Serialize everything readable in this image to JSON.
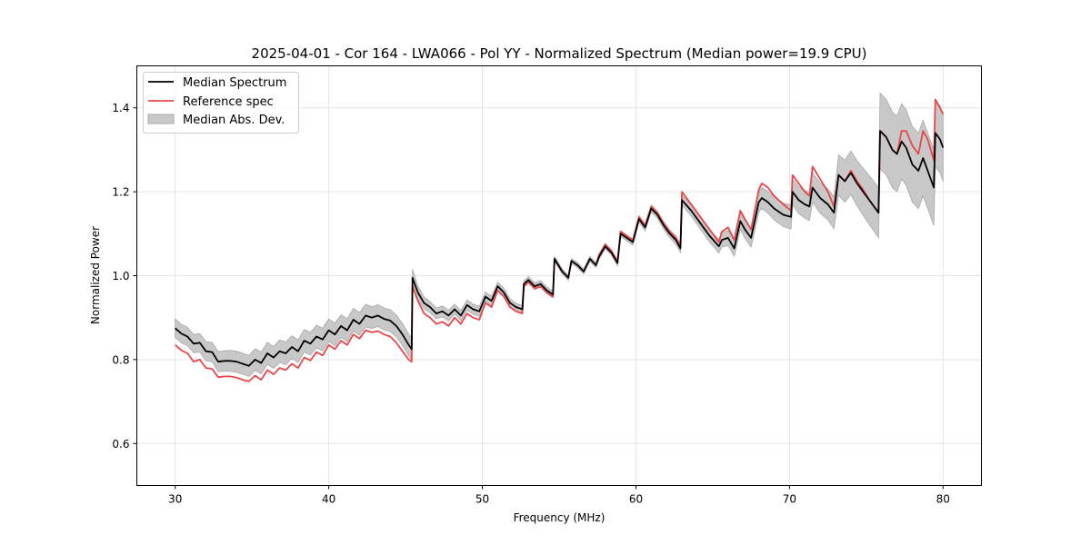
{
  "chart_data": {
    "type": "line",
    "title": "2025-04-01 - Cor 164 - LWA066 - Pol YY - Normalized Spectrum (Median power=19.9 CPU)",
    "xlabel": "Frequency (MHz)",
    "ylabel": "Normalized Power",
    "xlim": [
      27.5,
      82.5
    ],
    "ylim": [
      0.5,
      1.5
    ],
    "xticks": [
      30,
      40,
      50,
      60,
      70,
      80
    ],
    "xtick_labels": [
      "30",
      "40",
      "50",
      "60",
      "70",
      "80"
    ],
    "yticks": [
      0.6,
      0.8,
      1.0,
      1.2,
      1.4
    ],
    "ytick_labels": [
      "0.6",
      "0.8",
      "1.0",
      "1.2",
      "1.4"
    ],
    "grid": true,
    "legend": {
      "placement": "top-left",
      "entries": [
        {
          "label": "Median Spectrum",
          "kind": "line",
          "color": "#000000"
        },
        {
          "label": "Reference spec",
          "kind": "line",
          "color": "#e8474a"
        },
        {
          "label": "Median Abs. Dev.",
          "kind": "patch",
          "color": "#bfbfbf"
        }
      ]
    },
    "x": [
      30.0,
      30.4,
      30.8,
      31.2,
      31.6,
      32.0,
      32.4,
      32.8,
      33.2,
      33.6,
      34.0,
      34.4,
      34.8,
      35.2,
      35.6,
      36.0,
      36.4,
      36.8,
      37.2,
      37.6,
      38.0,
      38.4,
      38.8,
      39.2,
      39.6,
      40.0,
      40.4,
      40.8,
      41.2,
      41.6,
      42.0,
      42.4,
      42.8,
      43.2,
      43.6,
      44.0,
      44.4,
      44.8,
      45.2,
      45.4,
      45.45,
      45.8,
      46.2,
      46.6,
      47.0,
      47.4,
      47.8,
      48.2,
      48.6,
      49.0,
      49.4,
      49.8,
      50.2,
      50.6,
      51.0,
      51.4,
      51.8,
      52.2,
      52.6,
      52.7,
      53.0,
      53.4,
      53.8,
      54.2,
      54.6,
      54.7,
      55.2,
      55.6,
      55.8,
      56.2,
      56.6,
      57.0,
      57.4,
      57.6,
      58.0,
      58.4,
      58.8,
      59.0,
      59.4,
      59.8,
      60.2,
      60.6,
      61.0,
      61.4,
      61.8,
      62.2,
      62.6,
      62.9,
      63.0,
      63.6,
      64.2,
      64.8,
      65.4,
      65.6,
      66.0,
      66.4,
      66.8,
      67.1,
      67.5,
      68.0,
      68.2,
      68.6,
      69.0,
      69.6,
      70.1,
      70.2,
      70.6,
      71.0,
      71.3,
      71.5,
      72.0,
      72.5,
      72.9,
      73.2,
      73.6,
      74.0,
      74.4,
      74.8,
      75.2,
      75.8,
      75.9,
      76.3,
      76.7,
      77.0,
      77.3,
      77.6,
      78.0,
      78.4,
      78.7,
      79.0,
      79.4,
      79.5,
      79.8,
      80.0
    ],
    "series": [
      {
        "name": "Median Spectrum",
        "color": "#000000",
        "values": [
          0.875,
          0.862,
          0.855,
          0.838,
          0.84,
          0.82,
          0.818,
          0.795,
          0.797,
          0.797,
          0.795,
          0.79,
          0.785,
          0.8,
          0.792,
          0.815,
          0.805,
          0.82,
          0.815,
          0.83,
          0.82,
          0.845,
          0.838,
          0.855,
          0.848,
          0.87,
          0.86,
          0.88,
          0.87,
          0.895,
          0.885,
          0.905,
          0.9,
          0.905,
          0.897,
          0.893,
          0.88,
          0.86,
          0.835,
          0.825,
          0.995,
          0.96,
          0.935,
          0.925,
          0.91,
          0.915,
          0.905,
          0.92,
          0.905,
          0.93,
          0.92,
          0.915,
          0.95,
          0.94,
          0.975,
          0.96,
          0.935,
          0.925,
          0.92,
          0.98,
          0.99,
          0.975,
          0.98,
          0.965,
          0.955,
          1.04,
          1.01,
          0.995,
          1.035,
          1.025,
          1.01,
          1.04,
          1.025,
          1.045,
          1.07,
          1.055,
          1.03,
          1.1,
          1.09,
          1.08,
          1.135,
          1.115,
          1.16,
          1.145,
          1.12,
          1.1,
          1.085,
          1.065,
          1.18,
          1.155,
          1.125,
          1.095,
          1.07,
          1.085,
          1.09,
          1.065,
          1.13,
          1.11,
          1.09,
          1.175,
          1.185,
          1.175,
          1.16,
          1.145,
          1.14,
          1.2,
          1.18,
          1.17,
          1.165,
          1.21,
          1.185,
          1.17,
          1.15,
          1.24,
          1.225,
          1.245,
          1.22,
          1.2,
          1.18,
          1.15,
          1.345,
          1.33,
          1.3,
          1.29,
          1.32,
          1.305,
          1.265,
          1.25,
          1.28,
          1.25,
          1.21,
          1.34,
          1.325,
          1.305
        ]
      },
      {
        "name": "Reference spec",
        "color": "#e8474a",
        "values": [
          0.835,
          0.822,
          0.815,
          0.795,
          0.8,
          0.78,
          0.778,
          0.758,
          0.76,
          0.76,
          0.757,
          0.752,
          0.748,
          0.762,
          0.752,
          0.775,
          0.765,
          0.78,
          0.775,
          0.79,
          0.78,
          0.805,
          0.798,
          0.818,
          0.81,
          0.835,
          0.825,
          0.845,
          0.835,
          0.86,
          0.85,
          0.87,
          0.865,
          0.868,
          0.86,
          0.855,
          0.84,
          0.82,
          0.8,
          0.795,
          0.975,
          0.94,
          0.91,
          0.9,
          0.885,
          0.89,
          0.88,
          0.9,
          0.885,
          0.91,
          0.9,
          0.895,
          0.935,
          0.925,
          0.965,
          0.95,
          0.925,
          0.915,
          0.91,
          0.975,
          0.985,
          0.97,
          0.975,
          0.96,
          0.95,
          1.04,
          1.01,
          0.995,
          1.035,
          1.025,
          1.01,
          1.04,
          1.025,
          1.05,
          1.075,
          1.06,
          1.035,
          1.105,
          1.095,
          1.085,
          1.14,
          1.12,
          1.165,
          1.15,
          1.125,
          1.105,
          1.09,
          1.07,
          1.2,
          1.17,
          1.14,
          1.11,
          1.08,
          1.105,
          1.115,
          1.085,
          1.155,
          1.135,
          1.11,
          1.205,
          1.22,
          1.21,
          1.19,
          1.17,
          1.155,
          1.24,
          1.22,
          1.2,
          1.19,
          1.26,
          1.23,
          1.2,
          1.165,
          1.24,
          1.225,
          1.25,
          1.225,
          1.205,
          1.18,
          1.15,
          1.345,
          1.33,
          1.3,
          1.29,
          1.345,
          1.345,
          1.31,
          1.29,
          1.345,
          1.325,
          1.275,
          1.42,
          1.4,
          1.385
        ]
      },
      {
        "name": "Median Abs. Dev.",
        "kind": "band",
        "color": "#bfbfbf",
        "halfwidth": [
          0.022,
          0.022,
          0.022,
          0.022,
          0.022,
          0.023,
          0.023,
          0.024,
          0.024,
          0.025,
          0.025,
          0.025,
          0.025,
          0.026,
          0.026,
          0.026,
          0.026,
          0.027,
          0.027,
          0.027,
          0.027,
          0.027,
          0.027,
          0.027,
          0.027,
          0.027,
          0.027,
          0.027,
          0.027,
          0.027,
          0.027,
          0.027,
          0.026,
          0.026,
          0.026,
          0.026,
          0.026,
          0.026,
          0.026,
          0.026,
          0.02,
          0.016,
          0.014,
          0.013,
          0.013,
          0.013,
          0.013,
          0.012,
          0.012,
          0.012,
          0.012,
          0.012,
          0.011,
          0.011,
          0.01,
          0.01,
          0.01,
          0.009,
          0.009,
          0.008,
          0.008,
          0.008,
          0.008,
          0.008,
          0.008,
          0.006,
          0.006,
          0.006,
          0.006,
          0.006,
          0.006,
          0.006,
          0.006,
          0.006,
          0.006,
          0.006,
          0.006,
          0.007,
          0.007,
          0.007,
          0.008,
          0.008,
          0.008,
          0.008,
          0.009,
          0.009,
          0.01,
          0.01,
          0.012,
          0.013,
          0.014,
          0.015,
          0.016,
          0.017,
          0.018,
          0.019,
          0.02,
          0.021,
          0.022,
          0.024,
          0.025,
          0.026,
          0.027,
          0.028,
          0.029,
          0.031,
          0.032,
          0.033,
          0.034,
          0.035,
          0.036,
          0.037,
          0.038,
          0.048,
          0.05,
          0.052,
          0.054,
          0.056,
          0.058,
          0.06,
          0.09,
          0.09,
          0.09,
          0.09,
          0.09,
          0.09,
          0.09,
          0.09,
          0.09,
          0.09,
          0.09,
          0.08,
          0.08,
          0.08
        ]
      }
    ]
  },
  "colors": {
    "median": "#000000",
    "reference": "#e8474a",
    "overlap": "#8b0000",
    "band_fill": "#c8c8c8",
    "band_edge": "#a8a8a8",
    "grid": "#e5e5e5"
  }
}
